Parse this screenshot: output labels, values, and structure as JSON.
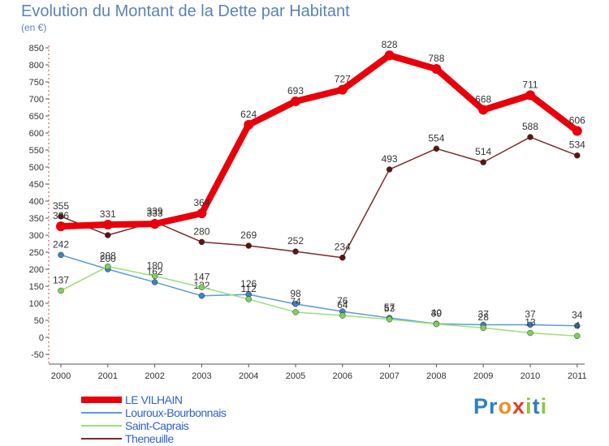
{
  "chart_data": {
    "type": "line",
    "title": "Evolution du Montant de la Dette par Habitant",
    "subtitle": "(en €)",
    "categories": [
      "2000",
      "2001",
      "2002",
      "2003",
      "2004",
      "2005",
      "2006",
      "2007",
      "2008",
      "2009",
      "2010",
      "2011"
    ],
    "ylim": [
      -50,
      850
    ],
    "yticks": [
      -50,
      0,
      50,
      100,
      150,
      200,
      250,
      300,
      350,
      400,
      450,
      500,
      550,
      600,
      650,
      700,
      750,
      800,
      850
    ],
    "grid": false,
    "legend_position": "bottom-left",
    "series": [
      {
        "name": "LE VILHAIN",
        "color": "#e8000b",
        "marker": "#e8000b",
        "emphasis": true,
        "values": [
          326,
          331,
          333,
          364,
          624,
          693,
          727,
          828,
          788,
          668,
          711,
          606
        ],
        "labels": [
          "326",
          "331",
          "333",
          "364",
          "624",
          "693",
          "727",
          "828",
          "788",
          "668",
          "711",
          "606"
        ]
      },
      {
        "name": "Louroux-Bourbonnais",
        "color": "#5b9bd5",
        "marker": "#3b83c9",
        "values": [
          242,
          200,
          162,
          122,
          126,
          98,
          76,
          57,
          40,
          37,
          37,
          34
        ],
        "labels": [
          "242",
          "200",
          "162",
          "122",
          "126",
          "98",
          "76",
          "57",
          "40",
          "37",
          "37",
          "34"
        ]
      },
      {
        "name": "Saint-Caprais",
        "color": "#9be07a",
        "marker": "#7fd05a",
        "values": [
          137,
          208,
          180,
          147,
          112,
          74,
          64,
          53,
          39,
          28,
          13,
          4
        ],
        "labels": [
          "137",
          "208",
          "180",
          "147",
          "112",
          "74",
          "64",
          "53",
          "39",
          "28",
          "13",
          "4"
        ]
      },
      {
        "name": "Theneuille",
        "color": "#7a2a2a",
        "marker": "#5a1414",
        "values": [
          355,
          300,
          339,
          280,
          269,
          252,
          234,
          493,
          554,
          514,
          588,
          534
        ],
        "labels": [
          "355",
          "",
          "339",
          "280",
          "269",
          "252",
          "234",
          "493",
          "554",
          "514",
          "588",
          "534"
        ]
      }
    ]
  },
  "logo": {
    "letters": [
      {
        "text": "P",
        "color": "#2e7fc2"
      },
      {
        "text": "r",
        "color": "#2e7fc2"
      },
      {
        "text": "o",
        "color": "#f28c1e"
      },
      {
        "text": "x",
        "color": "#e23b2a"
      },
      {
        "text": "i",
        "color": "#8cc63f"
      },
      {
        "text": "t",
        "color": "#2e7fc2"
      },
      {
        "text": "i",
        "color": "#8cc63f"
      }
    ]
  }
}
